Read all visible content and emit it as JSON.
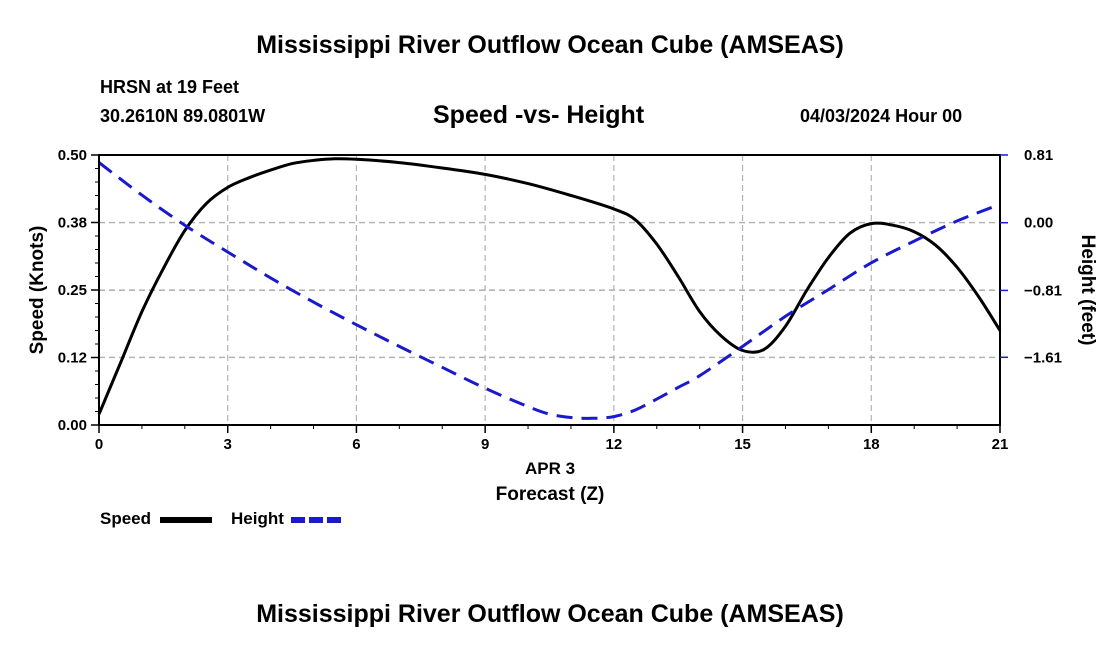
{
  "header": {
    "title_top": "Mississippi River Outflow Ocean Cube (AMSEAS)",
    "station": "HRSN at 19 Feet",
    "coords": "30.2610N  89.0801W",
    "subtitle": "Speed -vs- Height",
    "datetime": "04/03/2024 Hour 00",
    "title_bottom": "Mississippi River Outflow Ocean Cube (AMSEAS)"
  },
  "legend": {
    "speed_label": "Speed",
    "height_label": "Height",
    "speed_color": "#000000",
    "height_color": "#1a1acc"
  },
  "chart_data": {
    "type": "line",
    "title": "Speed -vs- Height",
    "xlabel_date": "APR 3",
    "xlabel": "Forecast (Z)",
    "ylabel_left": "Speed (Knots)",
    "ylabel_right": "Height (feet)",
    "xlim": [
      0,
      21
    ],
    "ylim_left": [
      0,
      0.5
    ],
    "ylim_right": [
      -2.42,
      0.81
    ],
    "x_ticks": [
      0,
      3,
      6,
      9,
      12,
      15,
      18,
      21
    ],
    "x_tick_labels": [
      "0",
      "3",
      "6",
      "9",
      "12",
      "15",
      "18",
      "21"
    ],
    "y_left_ticks": [
      0.0,
      0.125,
      0.25,
      0.375,
      0.5
    ],
    "y_left_tick_labels": [
      "0.00",
      "0.12",
      "0.25",
      "0.38",
      "0.50"
    ],
    "y_right_ticks": [
      0.81,
      0.0,
      -0.81,
      -1.61
    ],
    "y_right_tick_labels": [
      "0.81",
      "0.00",
      "−0.81",
      "−1.61"
    ],
    "grid": true,
    "series": [
      {
        "name": "Speed",
        "axis": "left",
        "style": "solid",
        "color": "#000000",
        "x": [
          0,
          0.5,
          1,
          1.5,
          2,
          2.5,
          3,
          3.5,
          4,
          4.5,
          5,
          5.5,
          6,
          7,
          8,
          9,
          10,
          11,
          12,
          12.5,
          13,
          13.5,
          14,
          14.5,
          15,
          15.5,
          16,
          16.5,
          17,
          17.5,
          18,
          18.5,
          19,
          19.5,
          20,
          20.5,
          21
        ],
        "values": [
          0.02,
          0.115,
          0.21,
          0.29,
          0.36,
          0.41,
          0.44,
          0.458,
          0.472,
          0.484,
          0.49,
          0.493,
          0.492,
          0.486,
          0.476,
          0.464,
          0.447,
          0.425,
          0.4,
          0.38,
          0.335,
          0.275,
          0.21,
          0.165,
          0.138,
          0.14,
          0.183,
          0.25,
          0.31,
          0.355,
          0.373,
          0.37,
          0.358,
          0.333,
          0.292,
          0.238,
          0.175
        ]
      },
      {
        "name": "Height",
        "axis": "right",
        "style": "dashed",
        "color": "#1a1acc",
        "x": [
          0,
          1,
          2,
          3,
          4,
          5,
          6,
          7,
          8,
          9,
          10,
          10.5,
          11,
          11.5,
          12,
          12.5,
          13,
          13.5,
          14,
          15,
          16,
          17,
          18,
          19,
          20,
          21
        ],
        "values": [
          0.72,
          0.33,
          -0.03,
          -0.35,
          -0.66,
          -0.95,
          -1.22,
          -1.48,
          -1.73,
          -1.98,
          -2.2,
          -2.29,
          -2.33,
          -2.34,
          -2.32,
          -2.24,
          -2.11,
          -1.97,
          -1.83,
          -1.48,
          -1.12,
          -0.8,
          -0.48,
          -0.22,
          0.02,
          0.22
        ]
      }
    ]
  }
}
